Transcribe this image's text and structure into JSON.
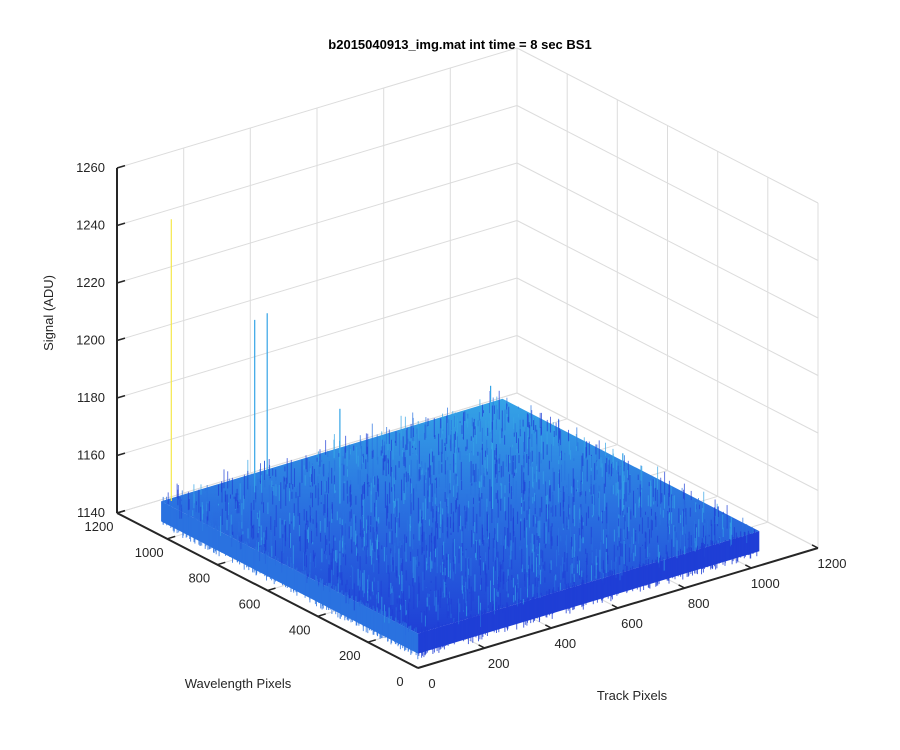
{
  "chart_data": {
    "type": "surface",
    "title": "b2015040913_img.mat int time = 8 sec   BS1",
    "xlabel": "Track Pixels",
    "ylabel": "Wavelength Pixels",
    "zlabel": "Signal (ADU)",
    "xlim": [
      0,
      1200
    ],
    "ylim": [
      0,
      1200
    ],
    "zlim": [
      1140,
      1260
    ],
    "xticks": [
      "0",
      "200",
      "400",
      "600",
      "800",
      "1000",
      "1200"
    ],
    "yticks": [
      "0",
      "200",
      "400",
      "600",
      "800",
      "1000",
      "1200"
    ],
    "zticks": [
      "1140",
      "1160",
      "1180",
      "1200",
      "1220",
      "1240",
      "1260"
    ],
    "grid": true,
    "colormap": "parula",
    "surface": {
      "track_extent": [
        0,
        1024
      ],
      "wavelength_extent": [
        0,
        1024
      ],
      "baseline_signal": 1150,
      "noise_peak_to_peak": 10,
      "spikes": [
        {
          "track": 20,
          "wavelength": 1010,
          "signal": 1250
        },
        {
          "track": 210,
          "wavelength": 930,
          "signal": 1212
        },
        {
          "track": 300,
          "wavelength": 1000,
          "signal": 1208
        },
        {
          "track": 330,
          "wavelength": 750,
          "signal": 1185
        },
        {
          "track": 840,
          "wavelength": 300,
          "signal": 1172
        },
        {
          "track": 880,
          "wavelength": 880,
          "signal": 1168
        },
        {
          "track": 600,
          "wavelength": 500,
          "signal": 1175
        }
      ]
    },
    "colors": {
      "surface_dark": "#1f3fd6",
      "surface_mid": "#2a72e0",
      "surface_light": "#34a4e6",
      "spike": "#f5e84a",
      "axes": "#262626",
      "grid": "#dcdcdc"
    }
  }
}
